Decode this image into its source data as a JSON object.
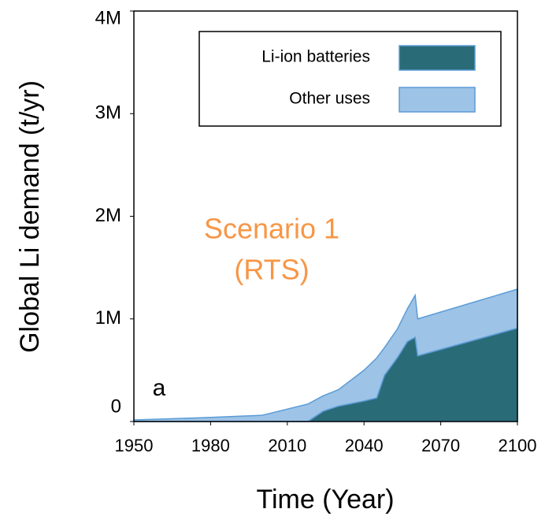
{
  "chart_data": {
    "type": "stacked_area",
    "xlabel": "Time (Year)",
    "ylabel": "Global Li demand (t/yr)",
    "annotations": [
      "Scenario 1",
      "(RTS)",
      "a"
    ],
    "x": [
      1950,
      1980,
      2000,
      2018,
      2024,
      2030,
      2040,
      2045,
      2048,
      2053,
      2057,
      2060,
      2061,
      2100
    ],
    "series": [
      {
        "name": "Li-ion batteries",
        "color": "#2a6b78",
        "values": [
          0,
          0,
          0,
          0,
          100000,
          150000,
          200000,
          230000,
          450000,
          620000,
          780000,
          820000,
          640000,
          910000
        ]
      },
      {
        "name": "Other uses",
        "color": "#9dc3e6",
        "values": [
          15000,
          40000,
          60000,
          170000,
          150000,
          160000,
          300000,
          390000,
          270000,
          280000,
          320000,
          410000,
          360000,
          380000
        ]
      }
    ],
    "xlim": [
      1950,
      2100
    ],
    "xticks": [
      1950,
      1980,
      2010,
      2040,
      2070,
      2100
    ],
    "ylim": [
      0,
      4000000
    ],
    "yticks": [
      0,
      {
        "value": 1000000,
        "label": "1M"
      },
      {
        "value": 2000000,
        "label": "2M"
      },
      {
        "value": 3000000,
        "label": "3M"
      },
      {
        "value": 4000000,
        "label": "4M"
      }
    ],
    "grid": false,
    "legend": "upper right"
  }
}
